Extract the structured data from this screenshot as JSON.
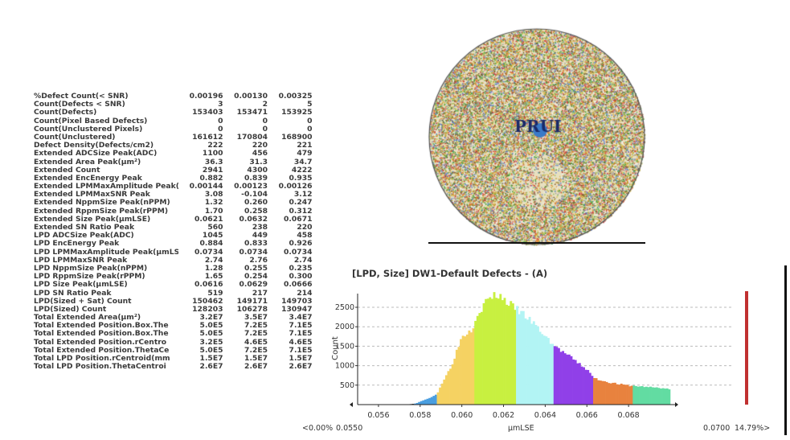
{
  "table": {
    "rows": [
      [
        "%Defect Count(< SNR)",
        "0.00196",
        "0.00130",
        "0.00325"
      ],
      [
        "Count(Defects < SNR)",
        "3",
        "2",
        "5"
      ],
      [
        "Count(Defects)",
        "153403",
        "153471",
        "153925"
      ],
      [
        "Count(Pixel Based Defects)",
        "0",
        "0",
        "0"
      ],
      [
        "Count(Unclustered Pixels)",
        "0",
        "0",
        "0"
      ],
      [
        "Count(Unclustered)",
        "161612",
        "170804",
        "168900"
      ],
      [
        "Defect Density(Defects/cm2)",
        "222",
        "220",
        "221"
      ],
      [
        "Extended ADCSize Peak(ADC)",
        "1100",
        "456",
        "479"
      ],
      [
        "Extended Area Peak(µm²)",
        "36.3",
        "31.3",
        "34.7"
      ],
      [
        "Extended Count",
        "2941",
        "4300",
        "4222"
      ],
      [
        "Extended EncEnergy Peak",
        "0.882",
        "0.839",
        "0.935"
      ],
      [
        "Extended LPMMaxAmplitude Peak(µ",
        "0.00144",
        "0.00123",
        "0.00126"
      ],
      [
        "Extended LPMMaxSNR Peak",
        "3.08",
        "-0.104",
        "3.12"
      ],
      [
        "Extended NppmSize Peak(nPPM)",
        "1.32",
        "0.260",
        "0.247"
      ],
      [
        "Extended RppmSize Peak(rPPM)",
        "1.70",
        "0.258",
        "0.312"
      ],
      [
        "Extended Size Peak(µmLSE)",
        "0.0621",
        "0.0632",
        "0.0671"
      ],
      [
        "Extended SN Ratio Peak",
        "560",
        "238",
        "220"
      ],
      [
        "LPD ADCSize Peak(ADC)",
        "1045",
        "449",
        "458"
      ],
      [
        "LPD EncEnergy Peak",
        "0.884",
        "0.833",
        "0.926"
      ],
      [
        "LPD LPMMaxAmplitude Peak(µmLSE)",
        "0.0734",
        "0.0734",
        "0.0734"
      ],
      [
        "LPD LPMMaxSNR Peak",
        "2.74",
        "2.76",
        "2.74"
      ],
      [
        "LPD NppmSize Peak(nPPM)",
        "1.28",
        "0.255",
        "0.235"
      ],
      [
        "LPD RppmSize Peak(rPPM)",
        "1.65",
        "0.254",
        "0.300"
      ],
      [
        "LPD Size Peak(µmLSE)",
        "0.0616",
        "0.0629",
        "0.0666"
      ],
      [
        "LPD SN Ratio Peak",
        "519",
        "217",
        "214"
      ],
      [
        "LPD(Sized + Sat) Count",
        "150462",
        "149171",
        "149703"
      ],
      [
        "LPD(Sized) Count",
        "128203",
        "106278",
        "130947"
      ],
      [
        "Total Extended Area(µm²)",
        "3.2E7",
        "3.5E7",
        "3.4E7"
      ],
      [
        "Total Extended Position.Box.The",
        "5.0E5",
        "7.2E5",
        "7.1E5"
      ],
      [
        "Total Extended Position.Box.The",
        "5.0E5",
        "7.2E5",
        "7.1E5"
      ],
      [
        "Total Extended Position.rCentro",
        "3.2E5",
        "4.6E5",
        "4.6E5"
      ],
      [
        "Total Extended Position.ThetaCe",
        "5.0E5",
        "7.2E5",
        "7.1E5"
      ],
      [
        "Total LPD Position.rCentroid(mm",
        "1.5E7",
        "1.5E7",
        "1.5E7"
      ],
      [
        "Total LPD Position.ThetaCentroi",
        "2.6E7",
        "2.6E7",
        "2.6E7"
      ]
    ]
  },
  "wafer": {
    "logo_text": "PRUI"
  },
  "chart_data": {
    "type": "bar",
    "title": "[LPD, Size] DW1-Default Defects - (A)",
    "xlabel": "µmLSE",
    "ylabel": "Count",
    "xlim": [
      0.055,
      0.07
    ],
    "ylim": [
      0,
      2900
    ],
    "xticks": [
      "0.056",
      "0.058",
      "0.060",
      "0.062",
      "0.064",
      "0.066",
      "0.068"
    ],
    "yticks": [
      "500",
      "1000",
      "1500",
      "2000",
      "2500"
    ],
    "grid": "horizontal-dashed",
    "bin_width": 0.0001,
    "curve": [
      [
        0.055,
        8
      ],
      [
        0.0575,
        10
      ],
      [
        0.0578,
        30
      ],
      [
        0.058,
        80
      ],
      [
        0.0585,
        180
      ],
      [
        0.0588,
        270
      ],
      [
        0.059,
        500
      ],
      [
        0.0595,
        1000
      ],
      [
        0.06,
        1750
      ],
      [
        0.0605,
        1950
      ],
      [
        0.0607,
        2300
      ],
      [
        0.061,
        2500
      ],
      [
        0.0612,
        2700
      ],
      [
        0.0615,
        2780
      ],
      [
        0.0618,
        2820
      ],
      [
        0.062,
        2700
      ],
      [
        0.0625,
        2500
      ],
      [
        0.063,
        2300
      ],
      [
        0.0635,
        2050
      ],
      [
        0.064,
        1750
      ],
      [
        0.0645,
        1480
      ],
      [
        0.065,
        1300
      ],
      [
        0.0655,
        1100
      ],
      [
        0.066,
        900
      ],
      [
        0.0663,
        700
      ],
      [
        0.0665,
        650
      ],
      [
        0.067,
        580
      ],
      [
        0.0675,
        530
      ],
      [
        0.068,
        490
      ],
      [
        0.0685,
        470
      ],
      [
        0.069,
        450
      ],
      [
        0.0695,
        430
      ],
      [
        0.0699,
        400
      ]
    ],
    "segments": [
      {
        "end": 0.0588,
        "color": "#4a9ee0"
      },
      {
        "end": 0.0606,
        "color": "#f5d262"
      },
      {
        "end": 0.0626,
        "color": "#c8f040"
      },
      {
        "end": 0.0644,
        "color": "#b2f4f4"
      },
      {
        "end": 0.0663,
        "color": "#9040e8"
      },
      {
        "end": 0.0682,
        "color": "#e8823e"
      },
      {
        "end": 0.07,
        "color": "#62dca2"
      }
    ],
    "left_label": "<0.00%",
    "min_label": "0.0550",
    "max_label": "0.0700",
    "right_label": "14.79%>",
    "marker_color": "#c03030"
  }
}
